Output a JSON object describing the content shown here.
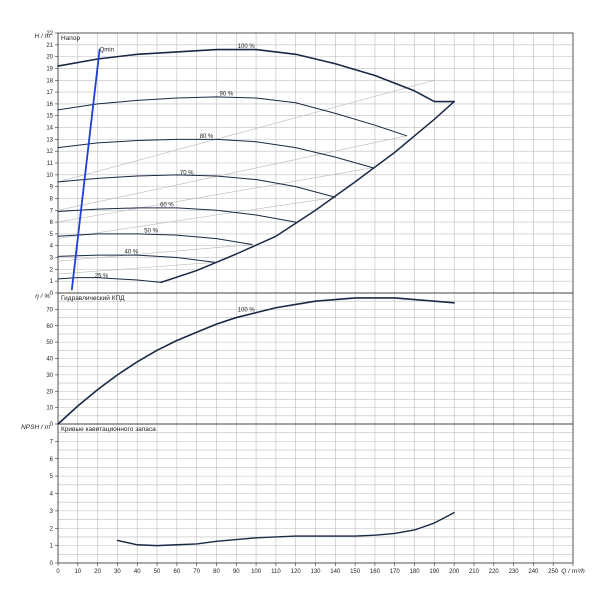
{
  "chart_data": [
    {
      "type": "line",
      "panel": "head",
      "title": "Напор",
      "ylabel": "H / m",
      "xlim": [
        0,
        260
      ],
      "ylim": [
        0,
        22
      ],
      "x_ticks": [
        0,
        10,
        20,
        30,
        40,
        50,
        60,
        70,
        80,
        90,
        100,
        110,
        120,
        130,
        140,
        150,
        160,
        170,
        180,
        190,
        200,
        210,
        220,
        230,
        240,
        250,
        260
      ],
      "y_ticks": [
        0,
        1,
        2,
        3,
        4,
        5,
        6,
        7,
        8,
        9,
        10,
        11,
        12,
        13,
        14,
        15,
        16,
        17,
        18,
        19,
        20,
        21,
        22
      ],
      "series": [
        {
          "name": "100 %",
          "x": [
            0,
            20,
            40,
            60,
            80,
            100,
            120,
            140,
            160,
            180,
            190,
            200
          ],
          "y": [
            19.2,
            19.8,
            20.2,
            20.4,
            20.6,
            20.6,
            20.2,
            19.4,
            18.4,
            17.1,
            16.2,
            16.2
          ]
        },
        {
          "name": "90 %",
          "x": [
            0,
            20,
            40,
            60,
            80,
            100,
            120,
            140,
            160,
            176
          ],
          "y": [
            15.5,
            16.0,
            16.3,
            16.5,
            16.6,
            16.5,
            16.1,
            15.2,
            14.2,
            13.3
          ]
        },
        {
          "name": "80 %",
          "x": [
            0,
            20,
            40,
            60,
            80,
            100,
            120,
            140,
            159
          ],
          "y": [
            12.3,
            12.7,
            12.9,
            13.0,
            13.0,
            12.8,
            12.3,
            11.5,
            10.6
          ]
        },
        {
          "name": "70 %",
          "x": [
            0,
            20,
            40,
            60,
            80,
            100,
            120,
            140
          ],
          "y": [
            9.4,
            9.7,
            9.9,
            10.0,
            9.9,
            9.6,
            9.0,
            8.1
          ]
        },
        {
          "name": "60 %",
          "x": [
            0,
            20,
            40,
            60,
            80,
            100,
            120
          ],
          "y": [
            6.9,
            7.1,
            7.2,
            7.2,
            7.0,
            6.6,
            6.0
          ]
        },
        {
          "name": "50 %",
          "x": [
            0,
            20,
            40,
            60,
            80,
            98
          ],
          "y": [
            4.8,
            5.0,
            5.0,
            4.9,
            4.6,
            4.1
          ]
        },
        {
          "name": "40 %",
          "x": [
            0,
            20,
            40,
            60,
            79
          ],
          "y": [
            3.1,
            3.2,
            3.2,
            3.0,
            2.6
          ]
        },
        {
          "name": "25 %",
          "x": [
            0,
            10,
            20,
            30,
            40,
            52
          ],
          "y": [
            1.2,
            1.3,
            1.3,
            1.2,
            1.1,
            0.9
          ]
        },
        {
          "name": "Qmin",
          "x": [
            7,
            21
          ],
          "y": [
            0.3,
            20.6
          ]
        },
        {
          "name": "",
          "x": [
            52,
            70,
            90,
            110,
            130,
            150,
            170,
            190,
            200
          ],
          "y": [
            0.9,
            1.9,
            3.3,
            4.8,
            7.0,
            9.4,
            11.9,
            14.7,
            16.2
          ]
        }
      ],
      "reference_lines": [
        {
          "x": [
            0,
            176
          ],
          "y": [
            7.0,
            13.3
          ]
        },
        {
          "x": [
            0,
            159
          ],
          "y": [
            6.0,
            10.6
          ]
        },
        {
          "x": [
            0,
            140
          ],
          "y": [
            4.6,
            8.1
          ]
        },
        {
          "x": [
            0,
            190
          ],
          "y": [
            9.4,
            18.0
          ]
        },
        {
          "x": [
            0,
            98
          ],
          "y": [
            2.7,
            4.1
          ]
        },
        {
          "x": [
            0,
            79
          ],
          "y": [
            1.6,
            2.6
          ]
        }
      ],
      "labels": [
        {
          "text": "100 %",
          "x": 95,
          "y": 20.9
        },
        {
          "text": "90 %",
          "x": 85,
          "y": 16.9
        },
        {
          "text": "80 %",
          "x": 75,
          "y": 13.3
        },
        {
          "text": "70 %",
          "x": 65,
          "y": 10.2
        },
        {
          "text": "60 %",
          "x": 55,
          "y": 7.5
        },
        {
          "text": "50 %",
          "x": 47,
          "y": 5.3
        },
        {
          "text": "40 %",
          "x": 37,
          "y": 3.5
        },
        {
          "text": "25 %",
          "x": 22,
          "y": 1.5
        },
        {
          "text": "Qmin",
          "x": 21,
          "y": 20.6
        }
      ]
    },
    {
      "type": "line",
      "panel": "efficiency",
      "title": "Гидравлический КПД",
      "ylabel": "η / %",
      "xlim": [
        0,
        260
      ],
      "ylim": [
        0,
        80
      ],
      "y_ticks": [
        0,
        10,
        20,
        30,
        40,
        50,
        60,
        70
      ],
      "series": [
        {
          "name": "100 %",
          "x": [
            0,
            10,
            20,
            30,
            40,
            50,
            60,
            70,
            80,
            90,
            100,
            110,
            120,
            130,
            140,
            150,
            160,
            170,
            180,
            190,
            200
          ],
          "y": [
            0,
            11,
            21,
            30,
            38,
            45,
            51,
            56,
            61,
            65,
            68,
            71,
            73,
            75,
            76,
            77,
            77,
            77,
            76,
            75,
            74
          ]
        }
      ],
      "labels": [
        {
          "text": "100 %",
          "x": 95,
          "y": 70
        }
      ]
    },
    {
      "type": "line",
      "panel": "npsh",
      "title": "Кривые кавитационного запаса",
      "ylabel": "NPSH / m",
      "xlabel": "Q / m³/h",
      "xlim": [
        0,
        260
      ],
      "ylim": [
        0,
        8
      ],
      "y_ticks": [
        0,
        1,
        2,
        3,
        4,
        5,
        6,
        7
      ],
      "series": [
        {
          "name": "",
          "x": [
            30,
            40,
            50,
            60,
            70,
            80,
            90,
            100,
            110,
            120,
            130,
            140,
            150,
            160,
            170,
            180,
            190,
            200
          ],
          "y": [
            1.3,
            1.05,
            1.0,
            1.05,
            1.1,
            1.25,
            1.35,
            1.45,
            1.5,
            1.55,
            1.55,
            1.55,
            1.55,
            1.6,
            1.7,
            1.9,
            2.3,
            2.9
          ]
        }
      ]
    }
  ]
}
